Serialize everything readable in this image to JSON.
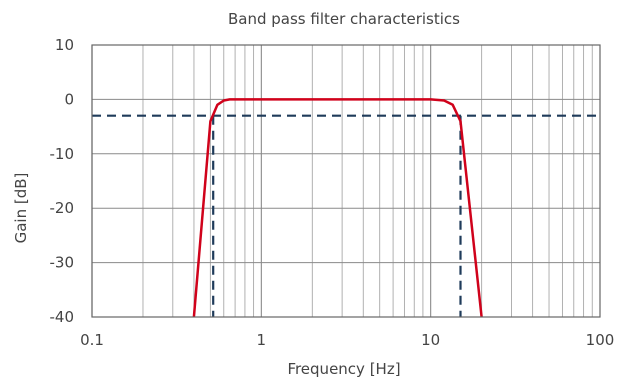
{
  "chart_data": {
    "type": "line",
    "title": "Band pass filter characteristics",
    "xlabel": "Frequency [Hz]",
    "ylabel": "Gain [dB]",
    "x_scale": "log",
    "xlim": [
      0.1,
      100
    ],
    "ylim": [
      -40,
      10
    ],
    "x_ticks": [
      0.1,
      1,
      10,
      100
    ],
    "x_tick_labels": [
      "0.1",
      "1",
      "10",
      "100"
    ],
    "y_ticks": [
      10,
      0,
      -10,
      -20,
      -30,
      -40
    ],
    "y_tick_labels": [
      "10",
      "0",
      "-10",
      "-20",
      "-30",
      "-40"
    ],
    "grid": true,
    "series": [
      {
        "color": "#d0021b",
        "style": "solid",
        "points": [
          [
            0.4,
            -40
          ],
          [
            0.5,
            -4
          ],
          [
            0.55,
            -1
          ],
          [
            0.6,
            -0.2
          ],
          [
            0.65,
            0
          ],
          [
            10,
            0
          ],
          [
            12,
            -0.2
          ],
          [
            13.5,
            -1
          ],
          [
            15,
            -4
          ],
          [
            20,
            -40
          ]
        ]
      },
      {
        "color": "#1f3b5a",
        "style": "dashed",
        "points": [
          [
            0.1,
            -3
          ],
          [
            100,
            -3
          ]
        ]
      },
      {
        "color": "#1f3b5a",
        "style": "dashed",
        "points": [
          [
            0.52,
            -3
          ],
          [
            0.52,
            -40
          ]
        ]
      },
      {
        "color": "#1f3b5a",
        "style": "dashed",
        "points": [
          [
            15,
            -3
          ],
          [
            15,
            -40
          ]
        ]
      }
    ]
  }
}
